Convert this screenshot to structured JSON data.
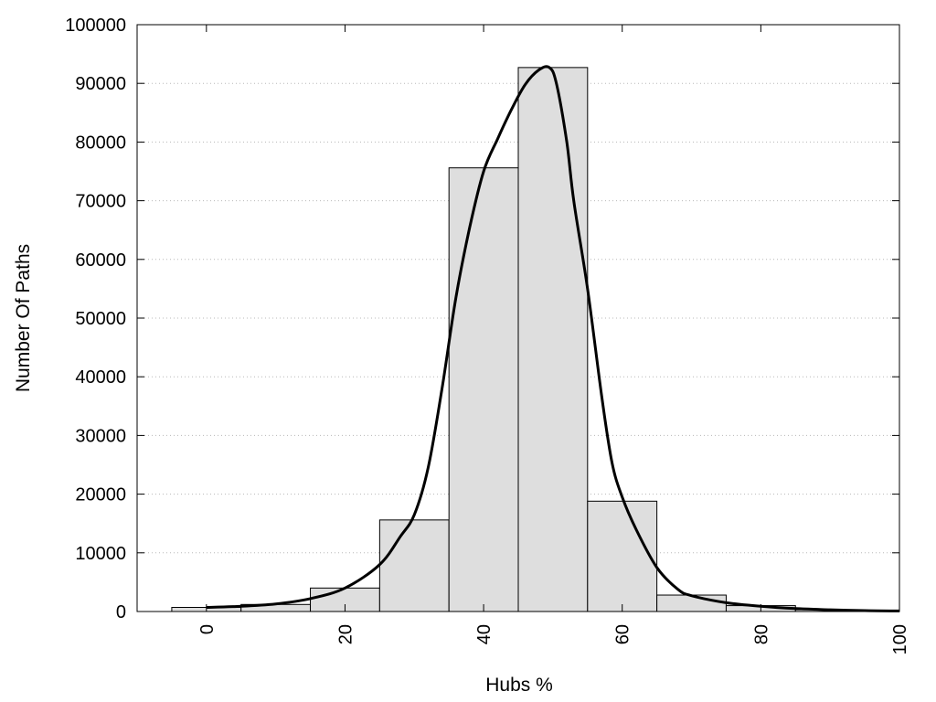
{
  "chart_data": {
    "type": "bar",
    "title": "",
    "xlabel": "Hubs %",
    "ylabel": "Number Of Paths",
    "xlim": [
      -10,
      100
    ],
    "ylim": [
      0,
      100000
    ],
    "x_ticks": [
      "0",
      "20",
      "40",
      "60",
      "80",
      "100"
    ],
    "y_ticks": [
      "0",
      "10000",
      "20000",
      "30000",
      "40000",
      "50000",
      "60000",
      "70000",
      "80000",
      "90000",
      "100000"
    ],
    "grid": "horizontal dotted",
    "bin_width": 10,
    "bars": [
      {
        "x": 0,
        "value": 700
      },
      {
        "x": 10,
        "value": 1200
      },
      {
        "x": 20,
        "value": 4000
      },
      {
        "x": 30,
        "value": 15600
      },
      {
        "x": 40,
        "value": 75600
      },
      {
        "x": 50,
        "value": 92700
      },
      {
        "x": 60,
        "value": 18800
      },
      {
        "x": 70,
        "value": 2800
      },
      {
        "x": 80,
        "value": 1000
      },
      {
        "x": 90,
        "value": 300
      }
    ],
    "curve": {
      "x": [
        0,
        5,
        10,
        15,
        20,
        25,
        28,
        30,
        32,
        34,
        36,
        38,
        40,
        42,
        44,
        46,
        48,
        49.5,
        50.5,
        52,
        53,
        55,
        57,
        58.5,
        60,
        62,
        65,
        68,
        70,
        75,
        80,
        85,
        90,
        95,
        100
      ],
      "y": [
        700,
        900,
        1300,
        2200,
        4000,
        8000,
        12800,
        16500,
        24500,
        38000,
        53500,
        65500,
        75000,
        80500,
        85500,
        89800,
        92300,
        92700,
        90000,
        80000,
        70000,
        55000,
        37000,
        25500,
        19500,
        14000,
        7500,
        3800,
        2700,
        1500,
        900,
        500,
        300,
        150,
        100
      ]
    },
    "colors": {
      "bar_fill": "#dedede",
      "bar_stroke": "#000000",
      "curve": "#000000",
      "grid": "#b8b8b8"
    }
  }
}
